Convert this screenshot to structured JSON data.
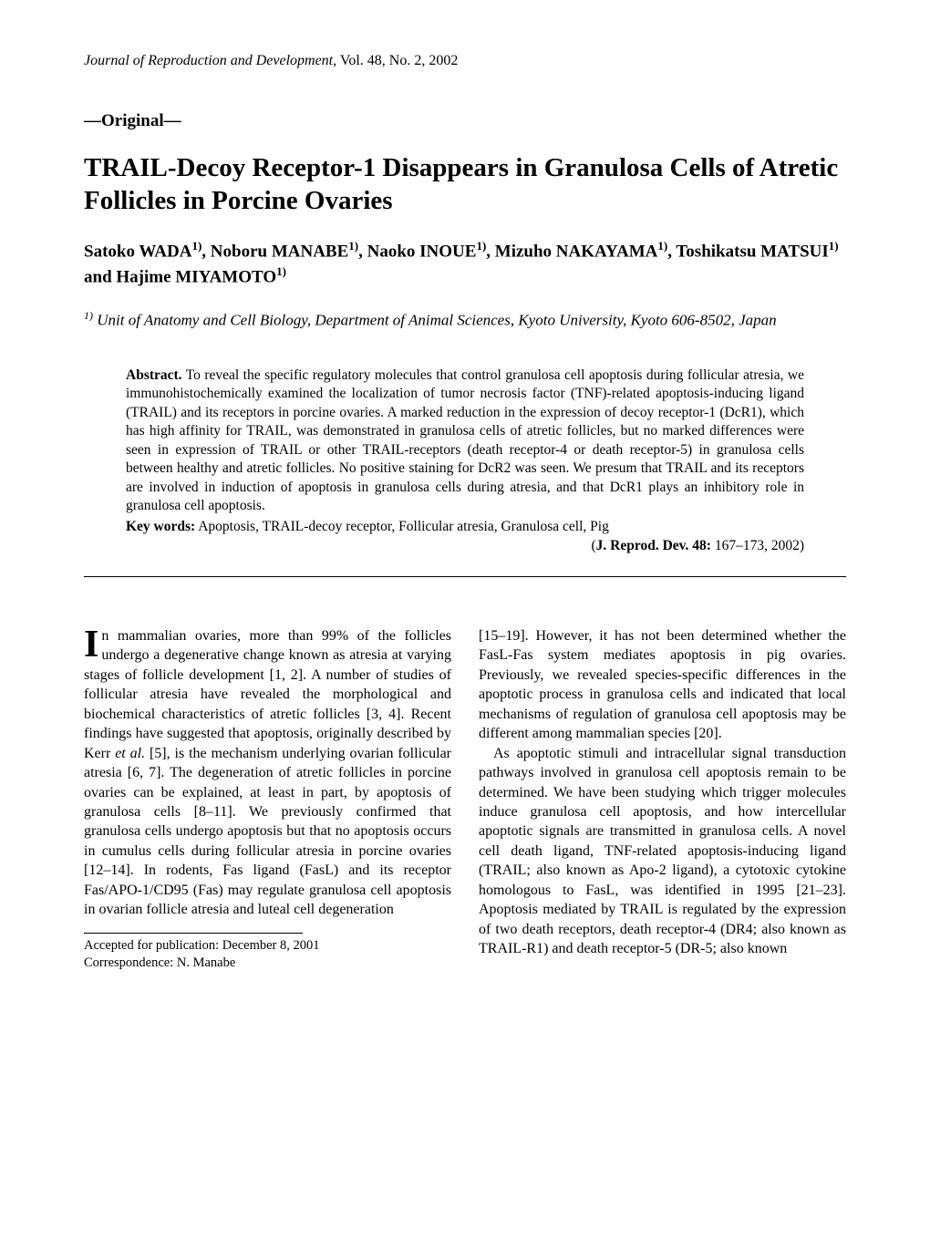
{
  "journal": {
    "name": "Journal of Reproduction and Development",
    "volume_issue": ", Vol. 48, No. 2, 2002"
  },
  "section_tag": "—Original—",
  "title": "TRAIL-Decoy Receptor-1 Disappears in Granulosa Cells of Atretic Follicles in Porcine Ovaries",
  "authors_html": "Satoko WADA<sup>1)</sup>, Noboru MANABE<sup>1)</sup>, Naoko INOUE<sup>1)</sup>, Mizuho NAKAYAMA<sup>1)</sup>, Toshikatsu MATSUI<sup>1)</sup> and Hajime MIYAMOTO<sup>1)</sup>",
  "affiliation_html": "<sup>1)</sup> Unit of Anatomy and Cell Biology, Department of Animal Sciences, Kyoto University, Kyoto 606-8502, Japan",
  "abstract": {
    "label": "Abstract.",
    "text": " To reveal the specific regulatory molecules that control granulosa cell apoptosis during follicular atresia, we immunohistochemically examined the localization of tumor necrosis factor (TNF)-related apoptosis-inducing ligand (TRAIL) and its receptors in porcine ovaries. A marked reduction in the expression of decoy receptor-1 (DcR1), which has high affinity for TRAIL, was demonstrated in granulosa cells of atretic follicles, but no marked differences were seen in expression of TRAIL or other TRAIL-receptors (death receptor-4 or death receptor-5) in granulosa cells between healthy and atretic follicles. No positive staining for DcR2 was seen. We presum that TRAIL and its receptors are involved in induction of apoptosis in granulosa cells during atresia, and that DcR1 plays an inhibitory role in granulosa cell apoptosis."
  },
  "keywords": {
    "label": "Key words:",
    "text": " Apoptosis, TRAIL-decoy receptor, Follicular atresia, Granulosa cell, Pig"
  },
  "citation_html": "(<b>J. Reprod. Dev. 48:</b> 167–173, 2002)",
  "body": {
    "dropcap": "I",
    "col1_html": "n mammalian ovaries, more than 99% of the follicles undergo a degenerative change known as atresia at varying stages of follicle development [1, 2].  A number of studies of follicular atresia have revealed the morphological and biochemical characteristics of atretic follicles [3, 4].  Recent findings have suggested that apoptosis, originally described by Kerr <span class=\"ital\">et al.</span> [5], is the mechanism underlying ovarian follicular atresia [6, 7].  The degeneration of atretic follicles in porcine ovaries can be explained, at least in part, by apoptosis of granulosa cells [8–11].  We previously confirmed that granulosa cells undergo apoptosis but that no apoptosis occurs in cumulus cells during follicular atresia in porcine ovaries [12–14].  In rodents, Fas ligand (FasL) and its receptor Fas/APO-1/CD95 (Fas) may regulate granulosa cell apoptosis in ovarian follicle atresia and luteal cell degeneration",
    "col2_html": "[15–19].  However, it has not been determined whether the FasL-Fas system mediates apoptosis in pig ovaries.  Previously, we revealed species-specific differences in the apoptotic process in granulosa cells and indicated that local mechanisms of regulation of granulosa cell apoptosis may be different among mammalian species [20].",
    "col2_para2_html": "As apoptotic stimuli and intracellular signal transduction pathways involved in granulosa cell apoptosis remain to be determined.  We have been studying which trigger molecules induce granulosa cell apoptosis, and how intercellular apoptotic signals are transmitted in granulosa cells.  A novel cell death ligand, TNF-related apoptosis-inducing ligand (TRAIL; also known as Apo-2 ligand), a cytotoxic cytokine homologous to FasL, was identified in 1995 [21–23].  Apoptosis mediated by TRAIL is regulated by the expression of two death receptors, death receptor-4 (DR4; also known as TRAIL-R1) and death receptor-5 (DR-5; also known"
  },
  "footnote": {
    "line1": "Accepted for publication:  December 8, 2001",
    "line2": "Correspondence: N. Manabe"
  }
}
